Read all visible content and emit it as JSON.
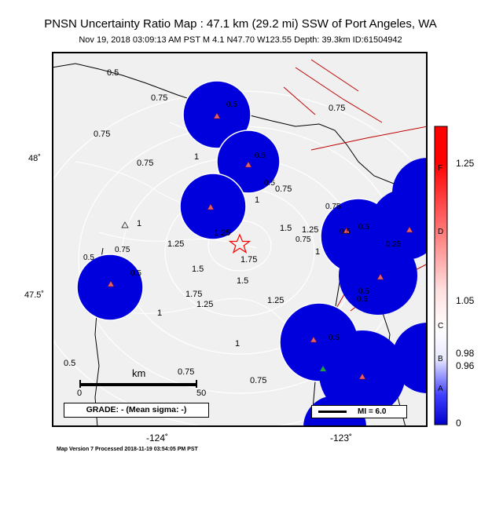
{
  "header": {
    "title": "PNSN Uncertainty Ratio Map : 47.1 km (29.2 mi) SSW of Port Angeles, WA",
    "subtitle": "Nov 19, 2018 03:09:13 AM PST    M 4.1    N47.70 W123.55    Depth: 39.3km    ID:61504942"
  },
  "axes": {
    "lat_ticks": [
      "48˚",
      "47.5˚"
    ],
    "lon_ticks": [
      "-124˚",
      "-123˚"
    ]
  },
  "contours": {
    "labels": [
      "0.5",
      "0.75",
      "0.5",
      "0.75",
      "1",
      "0.5",
      "0.75",
      "0.5",
      "1",
      "0.75",
      "1.25",
      "1",
      "1.5",
      "1.25",
      "1.5",
      "1.75",
      "1.25",
      "1.5",
      "1.75",
      "1.25",
      "1",
      "1.25",
      "1",
      "0.75",
      "0.5",
      "0.75",
      "0.5",
      "1",
      "0.75",
      "0.5",
      "0.75",
      "0.5",
      "0.5",
      "0.75",
      "0.25",
      "0.5",
      "0.75",
      "0.5",
      "0.5"
    ]
  },
  "scale_bar": {
    "unit": "km",
    "start": "0",
    "end": "50"
  },
  "grade": {
    "text": "GRADE: - (Mean sigma: -)"
  },
  "mi_legend": {
    "text": "MI = 6.0"
  },
  "colorbar": {
    "values": [
      "1.25",
      "1.05",
      "0.98",
      "0.96",
      "0"
    ],
    "letters": [
      "F",
      "D",
      "C",
      "B",
      "A"
    ],
    "colors": {
      "top": "#ff0000",
      "mid": "#ffffff",
      "bottom": "#0000ff"
    }
  },
  "footer": {
    "text": "Map Version 7 Processed 2018-11-19 03:54:05 PM PST"
  }
}
